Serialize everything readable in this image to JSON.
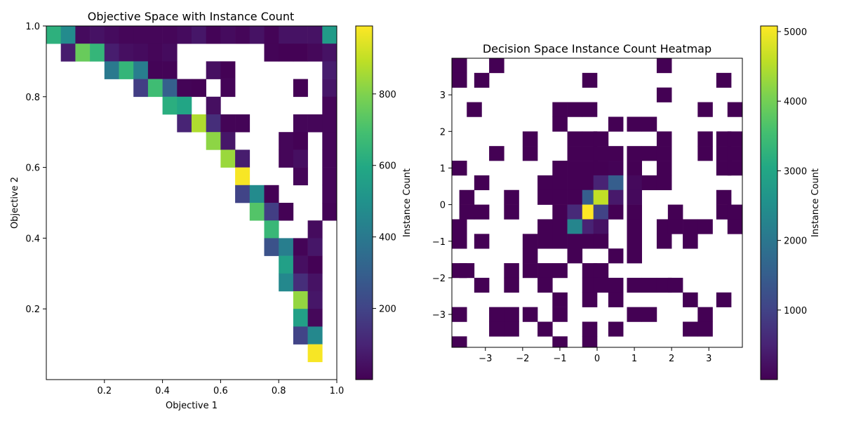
{
  "chart_data": [
    {
      "type": "heatmap",
      "title": "Objective Space with Instance Count",
      "xlabel": "Objective 1",
      "ylabel": "Objective 2",
      "xlim": [
        0.0,
        1.0
      ],
      "ylim": [
        0.0,
        1.0
      ],
      "x_ticks": [
        "0.2",
        "0.4",
        "0.6",
        "0.8",
        "1.0"
      ],
      "y_ticks": [
        "0.2",
        "0.4",
        "0.6",
        "0.8",
        "1.0"
      ],
      "bins": 20,
      "colorbar": {
        "label": "Instance Count",
        "min": 1,
        "max": 990,
        "ticks": [
          "200",
          "400",
          "600",
          "800"
        ]
      },
      "cmap": "viridis",
      "empty_color": "#ffffff",
      "cells": [
        [
          0.025,
          0.975,
          630
        ],
        [
          0.075,
          0.975,
          470
        ],
        [
          0.125,
          0.975,
          30
        ],
        [
          0.175,
          0.975,
          50
        ],
        [
          0.225,
          0.975,
          30
        ],
        [
          0.275,
          0.975,
          15
        ],
        [
          0.325,
          0.975,
          15
        ],
        [
          0.375,
          0.975,
          15
        ],
        [
          0.425,
          0.975,
          15
        ],
        [
          0.475,
          0.975,
          30
        ],
        [
          0.525,
          0.975,
          60
        ],
        [
          0.575,
          0.975,
          10
        ],
        [
          0.625,
          0.975,
          30
        ],
        [
          0.675,
          0.975,
          15
        ],
        [
          0.725,
          0.975,
          50
        ],
        [
          0.775,
          0.975,
          10
        ],
        [
          0.825,
          0.975,
          50
        ],
        [
          0.875,
          0.975,
          50
        ],
        [
          0.925,
          0.975,
          50
        ],
        [
          0.975,
          0.975,
          540
        ],
        [
          0.075,
          0.925,
          80
        ],
        [
          0.125,
          0.925,
          760
        ],
        [
          0.175,
          0.925,
          650
        ],
        [
          0.225,
          0.925,
          80
        ],
        [
          0.275,
          0.925,
          40
        ],
        [
          0.325,
          0.925,
          30
        ],
        [
          0.375,
          0.925,
          15
        ],
        [
          0.425,
          0.925,
          30
        ],
        [
          0.775,
          0.925,
          10
        ],
        [
          0.825,
          0.925,
          5
        ],
        [
          0.875,
          0.925,
          5
        ],
        [
          0.925,
          0.925,
          20
        ],
        [
          0.975,
          0.925,
          50
        ],
        [
          0.225,
          0.875,
          400
        ],
        [
          0.275,
          0.875,
          650
        ],
        [
          0.325,
          0.875,
          420
        ],
        [
          0.375,
          0.875,
          10
        ],
        [
          0.425,
          0.875,
          10
        ],
        [
          0.575,
          0.875,
          40
        ],
        [
          0.625,
          0.875,
          5
        ],
        [
          0.975,
          0.875,
          80
        ],
        [
          0.325,
          0.825,
          180
        ],
        [
          0.375,
          0.825,
          680
        ],
        [
          0.425,
          0.825,
          300
        ],
        [
          0.475,
          0.825,
          10
        ],
        [
          0.525,
          0.825,
          5
        ],
        [
          0.625,
          0.825,
          10
        ],
        [
          0.875,
          0.825,
          5
        ],
        [
          0.975,
          0.825,
          60
        ],
        [
          0.425,
          0.775,
          620
        ],
        [
          0.475,
          0.775,
          580
        ],
        [
          0.575,
          0.775,
          40
        ],
        [
          0.975,
          0.775,
          15
        ],
        [
          0.475,
          0.725,
          100
        ],
        [
          0.525,
          0.725,
          870
        ],
        [
          0.575,
          0.725,
          130
        ],
        [
          0.625,
          0.725,
          10
        ],
        [
          0.675,
          0.725,
          10
        ],
        [
          0.875,
          0.725,
          15
        ],
        [
          0.925,
          0.725,
          15
        ],
        [
          0.975,
          0.725,
          15
        ],
        [
          0.575,
          0.675,
          820
        ],
        [
          0.625,
          0.675,
          60
        ],
        [
          0.825,
          0.675,
          15
        ],
        [
          0.875,
          0.675,
          5
        ],
        [
          0.975,
          0.675,
          15
        ],
        [
          0.625,
          0.625,
          840
        ],
        [
          0.675,
          0.625,
          80
        ],
        [
          0.825,
          0.625,
          15
        ],
        [
          0.875,
          0.625,
          40
        ],
        [
          0.975,
          0.625,
          15
        ],
        [
          0.675,
          0.575,
          980
        ],
        [
          0.875,
          0.575,
          15
        ],
        [
          0.975,
          0.575,
          15
        ],
        [
          0.675,
          0.525,
          200
        ],
        [
          0.725,
          0.525,
          470
        ],
        [
          0.775,
          0.525,
          5
        ],
        [
          0.975,
          0.525,
          15
        ],
        [
          0.725,
          0.475,
          720
        ],
        [
          0.775,
          0.475,
          180
        ],
        [
          0.825,
          0.475,
          5
        ],
        [
          0.975,
          0.475,
          10
        ],
        [
          0.775,
          0.425,
          660
        ],
        [
          0.925,
          0.425,
          30
        ],
        [
          0.775,
          0.375,
          250
        ],
        [
          0.825,
          0.375,
          420
        ],
        [
          0.875,
          0.375,
          10
        ],
        [
          0.925,
          0.375,
          60
        ],
        [
          0.825,
          0.325,
          560
        ],
        [
          0.875,
          0.325,
          40
        ],
        [
          0.925,
          0.325,
          5
        ],
        [
          0.825,
          0.275,
          460
        ],
        [
          0.875,
          0.275,
          130
        ],
        [
          0.925,
          0.275,
          50
        ],
        [
          0.875,
          0.225,
          830
        ],
        [
          0.925,
          0.225,
          60
        ],
        [
          0.875,
          0.175,
          560
        ],
        [
          0.925,
          0.175,
          20
        ],
        [
          0.875,
          0.125,
          200
        ],
        [
          0.925,
          0.125,
          460
        ],
        [
          0.925,
          0.075,
          980
        ]
      ]
    },
    {
      "type": "heatmap",
      "title": "Decision Space Instance Count Heatmap",
      "xlabel": "",
      "ylabel": "",
      "xlim": [
        -3.9,
        3.9
      ],
      "ylim": [
        -3.9,
        4.0
      ],
      "x_ticks": [
        -3,
        -2,
        -1,
        0,
        1,
        2,
        3
      ],
      "y_ticks": [
        -3,
        -2,
        -1,
        0,
        1,
        2,
        3
      ],
      "colorbar": {
        "label": "Instance Count",
        "min": 1,
        "max": 5080,
        "ticks": [
          "1000",
          "2000",
          "3000",
          "4000",
          "5000"
        ]
      },
      "cmap": "viridis",
      "empty_color": "#ffffff",
      "cells": [
        [
          -3.7,
          3.8,
          1
        ],
        [
          -2.7,
          3.8,
          1
        ],
        [
          1.8,
          3.8,
          1
        ],
        [
          -3.7,
          3.4,
          1
        ],
        [
          -3.1,
          3.4,
          1
        ],
        [
          -0.2,
          3.4,
          1
        ],
        [
          3.4,
          3.4,
          1
        ],
        [
          1.8,
          3.0,
          1
        ],
        [
          -3.3,
          2.6,
          1
        ],
        [
          -1.0,
          2.6,
          1
        ],
        [
          -0.6,
          2.6,
          1
        ],
        [
          -0.2,
          2.6,
          1
        ],
        [
          2.9,
          2.6,
          1
        ],
        [
          3.7,
          2.6,
          1
        ],
        [
          -1.0,
          2.2,
          1
        ],
        [
          0.5,
          2.2,
          1
        ],
        [
          1.0,
          2.2,
          1
        ],
        [
          1.4,
          2.2,
          1
        ],
        [
          -1.8,
          1.8,
          1
        ],
        [
          -0.6,
          1.8,
          1
        ],
        [
          -0.2,
          1.8,
          1
        ],
        [
          0.1,
          1.8,
          1
        ],
        [
          1.8,
          1.8,
          1
        ],
        [
          2.9,
          1.8,
          1
        ],
        [
          3.4,
          1.8,
          1
        ],
        [
          3.7,
          1.8,
          1
        ],
        [
          -2.7,
          1.4,
          1
        ],
        [
          -1.8,
          1.4,
          1
        ],
        [
          -0.6,
          1.4,
          1
        ],
        [
          -0.2,
          1.4,
          1
        ],
        [
          0.1,
          1.4,
          1
        ],
        [
          0.5,
          1.4,
          1
        ],
        [
          1.0,
          1.4,
          1
        ],
        [
          1.4,
          1.4,
          1
        ],
        [
          1.8,
          1.4,
          1
        ],
        [
          2.9,
          1.4,
          1
        ],
        [
          3.4,
          1.4,
          1
        ],
        [
          3.7,
          1.4,
          1
        ],
        [
          -3.7,
          1.0,
          1
        ],
        [
          -1.0,
          1.0,
          1
        ],
        [
          -0.6,
          1.0,
          1
        ],
        [
          -0.2,
          1.0,
          1
        ],
        [
          0.1,
          1.0,
          1
        ],
        [
          0.5,
          1.0,
          30
        ],
        [
          1.0,
          1.0,
          1
        ],
        [
          1.8,
          1.0,
          1
        ],
        [
          3.4,
          1.0,
          1
        ],
        [
          3.7,
          1.0,
          1
        ],
        [
          -3.1,
          0.6,
          1
        ],
        [
          -1.4,
          0.6,
          1
        ],
        [
          -1.0,
          0.6,
          1
        ],
        [
          -0.6,
          0.6,
          1
        ],
        [
          -0.2,
          0.6,
          1
        ],
        [
          0.1,
          0.6,
          500
        ],
        [
          0.5,
          0.6,
          1500
        ],
        [
          1.0,
          0.6,
          120
        ],
        [
          1.4,
          0.6,
          1
        ],
        [
          1.8,
          0.6,
          1
        ],
        [
          -3.5,
          0.2,
          1
        ],
        [
          -2.3,
          0.2,
          1
        ],
        [
          -1.4,
          0.2,
          1
        ],
        [
          -1.0,
          0.2,
          1
        ],
        [
          -0.6,
          0.2,
          1
        ],
        [
          -0.2,
          0.2,
          1500
        ],
        [
          0.1,
          0.2,
          4600
        ],
        [
          0.5,
          0.2,
          350
        ],
        [
          1.0,
          0.2,
          120
        ],
        [
          3.4,
          0.2,
          1
        ],
        [
          -3.5,
          -0.2,
          1
        ],
        [
          -3.1,
          -0.2,
          1
        ],
        [
          -2.3,
          -0.2,
          1
        ],
        [
          -1.0,
          -0.2,
          1
        ],
        [
          -0.6,
          -0.2,
          600
        ],
        [
          -0.2,
          -0.2,
          5080
        ],
        [
          0.1,
          -0.2,
          1000
        ],
        [
          0.5,
          -0.2,
          1
        ],
        [
          1.0,
          -0.2,
          1
        ],
        [
          2.1,
          -0.2,
          1
        ],
        [
          3.4,
          -0.2,
          1
        ],
        [
          3.7,
          -0.2,
          1
        ],
        [
          -3.7,
          -0.6,
          1
        ],
        [
          -1.4,
          -0.6,
          1
        ],
        [
          -1.0,
          -0.6,
          1
        ],
        [
          -0.6,
          -0.6,
          2300
        ],
        [
          -0.2,
          -0.6,
          500
        ],
        [
          0.1,
          -0.6,
          250
        ],
        [
          1.0,
          -0.6,
          1
        ],
        [
          1.8,
          -0.6,
          1
        ],
        [
          2.1,
          -0.6,
          1
        ],
        [
          2.5,
          -0.6,
          1
        ],
        [
          2.9,
          -0.6,
          1
        ],
        [
          3.7,
          -0.6,
          1
        ],
        [
          -3.7,
          -1.0,
          1
        ],
        [
          -3.1,
          -1.0,
          1
        ],
        [
          -1.8,
          -1.0,
          1
        ],
        [
          -1.4,
          -1.0,
          1
        ],
        [
          -1.0,
          -1.0,
          1
        ],
        [
          -0.6,
          -1.0,
          1
        ],
        [
          -0.2,
          -1.0,
          1
        ],
        [
          0.1,
          -1.0,
          1
        ],
        [
          1.0,
          -1.0,
          1
        ],
        [
          1.8,
          -1.0,
          1
        ],
        [
          2.5,
          -1.0,
          1
        ],
        [
          -1.8,
          -1.4,
          1
        ],
        [
          -0.6,
          -1.4,
          1
        ],
        [
          0.5,
          -1.4,
          1
        ],
        [
          1.0,
          -1.4,
          1
        ],
        [
          -3.7,
          -1.8,
          1
        ],
        [
          -3.5,
          -1.8,
          1
        ],
        [
          -2.3,
          -1.8,
          1
        ],
        [
          -1.8,
          -1.8,
          1
        ],
        [
          -1.4,
          -1.8,
          1
        ],
        [
          -1.0,
          -1.8,
          1
        ],
        [
          -0.2,
          -1.8,
          1
        ],
        [
          0.1,
          -1.8,
          1
        ],
        [
          -3.1,
          -2.2,
          1
        ],
        [
          -2.3,
          -2.2,
          1
        ],
        [
          -1.4,
          -2.2,
          1
        ],
        [
          -0.2,
          -2.2,
          1
        ],
        [
          0.1,
          -2.2,
          1
        ],
        [
          0.5,
          -2.2,
          1
        ],
        [
          1.0,
          -2.2,
          1
        ],
        [
          1.4,
          -2.2,
          1
        ],
        [
          1.8,
          -2.2,
          1
        ],
        [
          2.1,
          -2.2,
          1
        ],
        [
          -1.0,
          -2.6,
          1
        ],
        [
          -0.2,
          -2.6,
          1
        ],
        [
          0.5,
          -2.6,
          1
        ],
        [
          2.5,
          -2.6,
          1
        ],
        [
          3.4,
          -2.6,
          1
        ],
        [
          -3.7,
          -3.0,
          1
        ],
        [
          -2.7,
          -3.0,
          1
        ],
        [
          -2.3,
          -3.0,
          1
        ],
        [
          -1.8,
          -3.0,
          1
        ],
        [
          -1.0,
          -3.0,
          1
        ],
        [
          1.0,
          -3.0,
          1
        ],
        [
          1.4,
          -3.0,
          1
        ],
        [
          2.9,
          -3.0,
          1
        ],
        [
          -2.7,
          -3.4,
          1
        ],
        [
          -2.3,
          -3.4,
          1
        ],
        [
          -1.4,
          -3.4,
          1
        ],
        [
          -0.2,
          -3.4,
          1
        ],
        [
          0.5,
          -3.4,
          1
        ],
        [
          2.5,
          -3.4,
          1
        ],
        [
          2.9,
          -3.4,
          1
        ],
        [
          -3.7,
          -3.8,
          1
        ],
        [
          -1.0,
          -3.8,
          1
        ],
        [
          -0.2,
          -3.8,
          1
        ]
      ]
    }
  ]
}
